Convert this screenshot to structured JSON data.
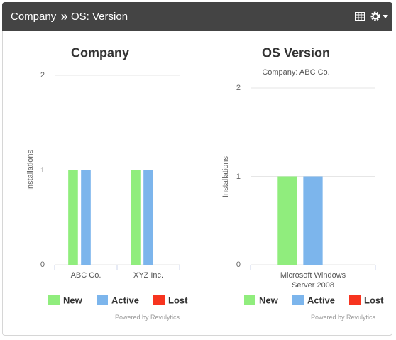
{
  "header": {
    "breadcrumb": [
      "Company",
      "OS: Version"
    ]
  },
  "chart_data": [
    {
      "type": "bar",
      "title": "Company",
      "y_label": "Installations",
      "categories": [
        "ABC Co.",
        "XYZ Inc."
      ],
      "series": [
        {
          "name": "New",
          "color": "#90ed7d",
          "values": [
            1,
            1
          ]
        },
        {
          "name": "Active",
          "color": "#7cb5ec",
          "values": [
            1,
            1
          ]
        },
        {
          "name": "Lost",
          "color": "#f7341f",
          "values": [
            0,
            0
          ]
        }
      ],
      "ylim": [
        0,
        2
      ],
      "yticks": [
        0,
        1,
        2
      ],
      "grid": true,
      "credits": "Powered by Revulytics"
    },
    {
      "type": "bar",
      "title": "OS Version",
      "subtitle": "Company: ABC Co.",
      "y_label": "Installations",
      "categories": [
        "Microsoft Windows Server 2008"
      ],
      "series": [
        {
          "name": "New",
          "color": "#90ed7d",
          "values": [
            1
          ]
        },
        {
          "name": "Active",
          "color": "#7cb5ec",
          "values": [
            1
          ]
        },
        {
          "name": "Lost",
          "color": "#f7341f",
          "values": [
            0
          ]
        }
      ],
      "ylim": [
        0,
        2
      ],
      "yticks": [
        0,
        1,
        2
      ],
      "grid": true,
      "credits": "Powered by Revulytics"
    }
  ]
}
